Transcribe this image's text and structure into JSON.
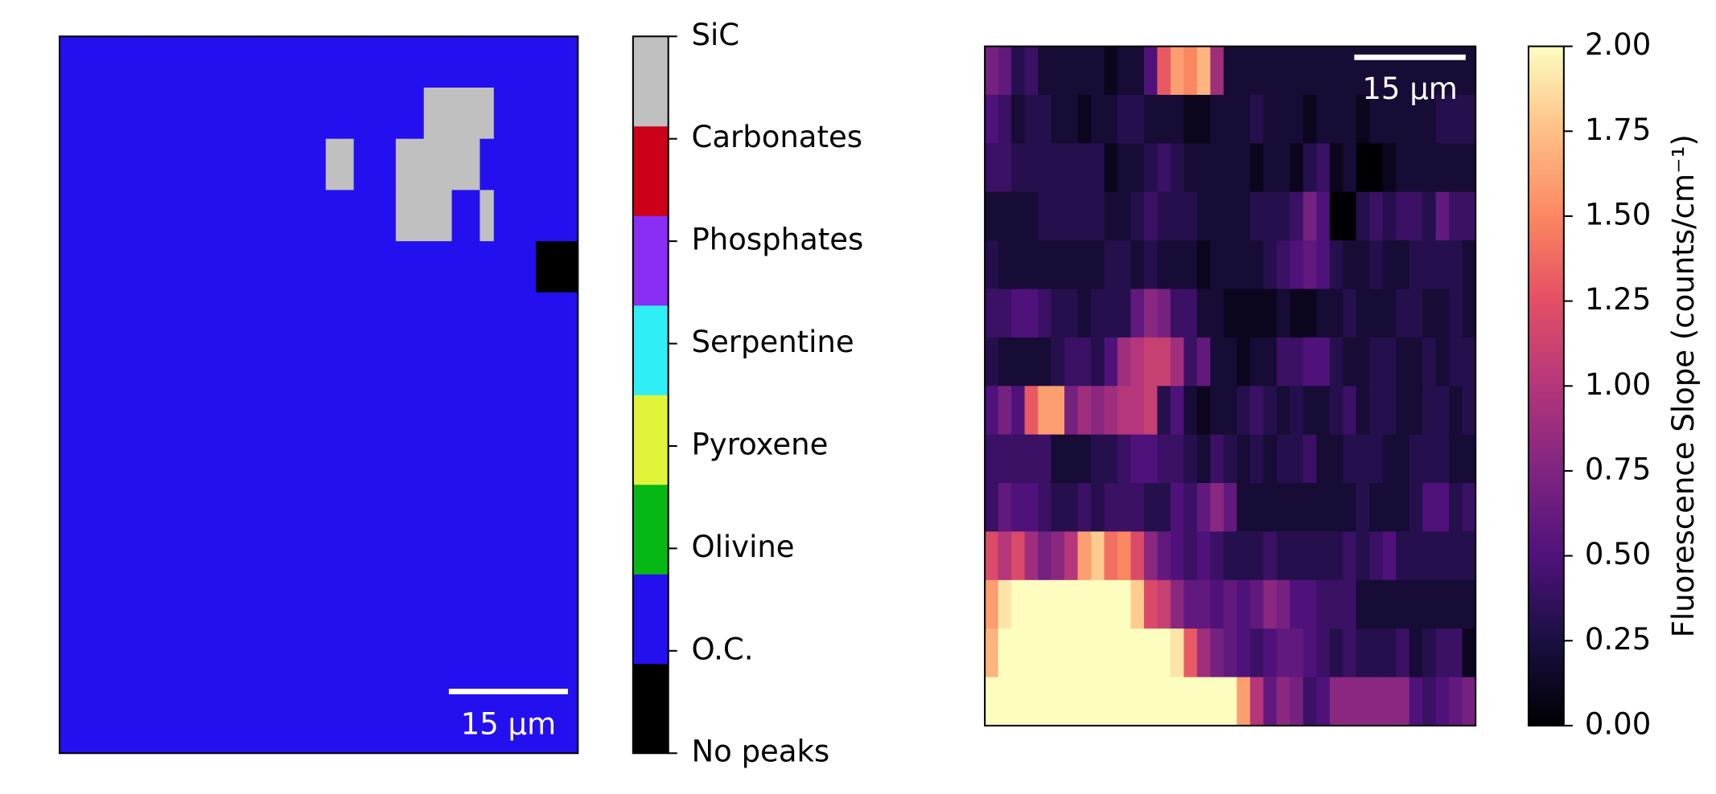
{
  "chart_data": [
    {
      "type": "categorical-map",
      "categories": [
        "No peaks",
        "O.C.",
        "Olivine",
        "Pyroxene",
        "Serpentine",
        "Phosphates",
        "Carbonates",
        "SiC"
      ],
      "colors": [
        "#000000",
        "#2410ee",
        "#05b815",
        "#e0f53a",
        "#30eef5",
        "#8a2df5",
        "#cc0018",
        "#c0c0c0"
      ],
      "annotation": "15 µm",
      "matrix": [
        [
          1,
          1,
          1,
          1,
          1,
          1,
          1,
          1,
          1,
          1,
          1,
          1,
          1,
          1,
          1,
          1,
          1,
          1,
          1,
          1,
          1,
          1,
          1,
          1,
          1,
          1,
          1,
          1,
          1,
          1,
          1,
          1,
          1,
          1,
          1,
          1,
          1
        ],
        [
          1,
          1,
          1,
          1,
          1,
          1,
          1,
          1,
          1,
          1,
          1,
          1,
          1,
          1,
          1,
          1,
          1,
          1,
          1,
          1,
          1,
          1,
          1,
          1,
          1,
          1,
          7,
          7,
          7,
          7,
          7,
          1,
          1,
          1,
          1,
          1,
          1
        ],
        [
          1,
          1,
          1,
          1,
          1,
          1,
          1,
          1,
          1,
          1,
          1,
          1,
          1,
          1,
          1,
          1,
          1,
          1,
          1,
          7,
          7,
          1,
          1,
          1,
          7,
          7,
          7,
          7,
          7,
          7,
          1,
          1,
          1,
          1,
          1,
          1,
          1
        ],
        [
          1,
          1,
          1,
          1,
          1,
          1,
          1,
          1,
          1,
          1,
          1,
          1,
          1,
          1,
          1,
          1,
          1,
          1,
          1,
          1,
          1,
          1,
          1,
          1,
          7,
          7,
          7,
          7,
          1,
          1,
          7,
          1,
          1,
          1,
          1,
          1,
          1
        ],
        [
          1,
          1,
          1,
          1,
          1,
          1,
          1,
          1,
          1,
          1,
          1,
          1,
          1,
          1,
          1,
          1,
          1,
          1,
          1,
          1,
          1,
          1,
          1,
          1,
          1,
          1,
          1,
          1,
          1,
          1,
          1,
          1,
          1,
          1,
          0,
          0,
          0
        ],
        [
          1,
          1,
          1,
          1,
          1,
          1,
          1,
          1,
          1,
          1,
          1,
          1,
          1,
          1,
          1,
          1,
          1,
          1,
          1,
          1,
          1,
          1,
          1,
          1,
          1,
          1,
          1,
          1,
          1,
          1,
          1,
          1,
          1,
          1,
          1,
          1,
          1
        ],
        [
          1,
          1,
          1,
          1,
          1,
          1,
          1,
          1,
          1,
          1,
          1,
          1,
          1,
          1,
          1,
          1,
          1,
          1,
          1,
          1,
          1,
          1,
          1,
          1,
          1,
          1,
          1,
          1,
          1,
          1,
          1,
          1,
          1,
          1,
          1,
          1,
          1
        ],
        [
          1,
          1,
          1,
          1,
          1,
          1,
          1,
          1,
          1,
          1,
          1,
          1,
          1,
          1,
          1,
          1,
          1,
          1,
          1,
          1,
          1,
          1,
          1,
          1,
          1,
          1,
          1,
          1,
          1,
          1,
          1,
          1,
          1,
          1,
          1,
          1,
          1
        ],
        [
          1,
          1,
          1,
          1,
          1,
          1,
          1,
          1,
          1,
          1,
          1,
          1,
          1,
          1,
          1,
          1,
          1,
          1,
          1,
          1,
          1,
          1,
          1,
          1,
          1,
          1,
          1,
          1,
          1,
          1,
          1,
          1,
          1,
          1,
          1,
          1,
          1
        ],
        [
          1,
          1,
          1,
          1,
          1,
          1,
          1,
          1,
          1,
          1,
          1,
          1,
          1,
          1,
          1,
          1,
          1,
          1,
          1,
          1,
          1,
          1,
          1,
          1,
          1,
          1,
          1,
          1,
          1,
          1,
          1,
          1,
          1,
          1,
          1,
          1,
          1
        ],
        [
          1,
          1,
          1,
          1,
          1,
          1,
          1,
          1,
          1,
          1,
          1,
          1,
          1,
          1,
          1,
          1,
          1,
          1,
          1,
          1,
          1,
          1,
          1,
          1,
          1,
          1,
          1,
          1,
          1,
          1,
          1,
          1,
          1,
          1,
          1,
          1,
          1
        ],
        [
          1,
          1,
          1,
          1,
          1,
          1,
          1,
          1,
          1,
          1,
          1,
          1,
          1,
          1,
          1,
          1,
          1,
          1,
          1,
          1,
          1,
          1,
          1,
          1,
          1,
          1,
          1,
          1,
          1,
          1,
          1,
          1,
          1,
          1,
          1,
          1,
          1
        ],
        [
          1,
          1,
          1,
          1,
          1,
          1,
          1,
          1,
          1,
          1,
          1,
          1,
          1,
          1,
          1,
          1,
          1,
          1,
          1,
          1,
          1,
          1,
          1,
          1,
          1,
          1,
          1,
          1,
          1,
          1,
          1,
          1,
          1,
          1,
          1,
          1,
          1
        ],
        [
          1,
          1,
          1,
          1,
          1,
          1,
          1,
          1,
          1,
          1,
          1,
          1,
          1,
          1,
          1,
          1,
          1,
          1,
          1,
          1,
          1,
          1,
          1,
          1,
          1,
          1,
          1,
          1,
          1,
          1,
          1,
          1,
          1,
          1,
          1,
          1,
          1
        ]
      ]
    },
    {
      "type": "heatmap",
      "colormap": "magma",
      "zlim": [
        0,
        2
      ],
      "zticks": [
        {
          "value": 0,
          "label": "0.00"
        },
        {
          "value": 0.25,
          "label": "0.25"
        },
        {
          "value": 0.5,
          "label": "0.50"
        },
        {
          "value": 0.75,
          "label": "0.75"
        },
        {
          "value": 1,
          "label": "1.00"
        },
        {
          "value": 1.25,
          "label": "1.25"
        },
        {
          "value": 1.5,
          "label": "1.50"
        },
        {
          "value": 1.75,
          "label": "1.75"
        },
        {
          "value": 2,
          "label": "2.00"
        }
      ],
      "colorbar_label": "Fluorescence Slope (counts/cm⁻¹)",
      "annotation": "15 µm",
      "matrix": [
        [
          0.7,
          0.6,
          0.3,
          0.4,
          0.2,
          0.2,
          0.2,
          0.2,
          0.2,
          0.1,
          0.2,
          0.2,
          0.5,
          1.3,
          1.6,
          1.5,
          1.7,
          0.9,
          0.2,
          0.2,
          0.2,
          0.2,
          0.2,
          0.2,
          0.2,
          0.2,
          0.2,
          0.2,
          0.2,
          0.2,
          0.2,
          0.2,
          0.2,
          0.2,
          0.2,
          0.2,
          0.2
        ],
        [
          0.5,
          0.4,
          0.2,
          0.3,
          0.3,
          0.2,
          0.2,
          0.1,
          0.2,
          0.2,
          0.3,
          0.3,
          0.2,
          0.2,
          0.2,
          0.1,
          0.1,
          0.2,
          0.2,
          0.2,
          0.3,
          0.2,
          0.2,
          0.2,
          0.1,
          0.2,
          0.2,
          0.2,
          0.1,
          0.2,
          0.2,
          0.2,
          0.2,
          0.2,
          0.3,
          0.3,
          0.3
        ],
        [
          0.4,
          0.4,
          0.3,
          0.3,
          0.3,
          0.3,
          0.3,
          0.3,
          0.3,
          0.1,
          0.2,
          0.2,
          0.3,
          0.4,
          0.3,
          0.2,
          0.2,
          0.2,
          0.2,
          0.2,
          0.1,
          0.2,
          0.2,
          0.1,
          0.3,
          0.4,
          0.1,
          0.2,
          0.0,
          0.0,
          0.1,
          0.2,
          0.2,
          0.2,
          0.2,
          0.2,
          0.2
        ],
        [
          0.2,
          0.2,
          0.2,
          0.2,
          0.3,
          0.3,
          0.3,
          0.3,
          0.3,
          0.2,
          0.2,
          0.3,
          0.4,
          0.3,
          0.3,
          0.3,
          0.2,
          0.2,
          0.2,
          0.2,
          0.3,
          0.3,
          0.3,
          0.4,
          0.7,
          0.5,
          0.0,
          0.0,
          0.3,
          0.4,
          0.3,
          0.4,
          0.4,
          0.3,
          0.6,
          0.4,
          0.4
        ],
        [
          0.3,
          0.2,
          0.2,
          0.2,
          0.2,
          0.2,
          0.2,
          0.2,
          0.2,
          0.3,
          0.3,
          0.2,
          0.3,
          0.2,
          0.2,
          0.2,
          0.1,
          0.2,
          0.2,
          0.2,
          0.2,
          0.3,
          0.4,
          0.5,
          0.6,
          0.5,
          0.3,
          0.2,
          0.2,
          0.3,
          0.2,
          0.2,
          0.3,
          0.3,
          0.3,
          0.3,
          0.2
        ],
        [
          0.4,
          0.4,
          0.5,
          0.5,
          0.4,
          0.3,
          0.3,
          0.2,
          0.3,
          0.3,
          0.3,
          0.6,
          0.8,
          0.7,
          0.4,
          0.4,
          0.2,
          0.2,
          0.1,
          0.1,
          0.1,
          0.1,
          0.2,
          0.1,
          0.1,
          0.2,
          0.2,
          0.3,
          0.2,
          0.2,
          0.2,
          0.3,
          0.3,
          0.2,
          0.2,
          0.3,
          0.2
        ],
        [
          0.3,
          0.2,
          0.2,
          0.2,
          0.2,
          0.3,
          0.4,
          0.4,
          0.3,
          0.5,
          0.9,
          1.0,
          1.1,
          1.1,
          0.9,
          0.4,
          0.6,
          0.2,
          0.2,
          0.1,
          0.2,
          0.2,
          0.4,
          0.4,
          0.5,
          0.5,
          0.3,
          0.2,
          0.2,
          0.3,
          0.3,
          0.2,
          0.2,
          0.3,
          0.2,
          0.3,
          0.3
        ],
        [
          0.5,
          0.7,
          0.5,
          1.3,
          1.6,
          1.6,
          0.7,
          0.9,
          0.8,
          0.9,
          1.0,
          1.0,
          1.1,
          0.3,
          0.5,
          0.2,
          0.1,
          0.2,
          0.2,
          0.3,
          0.4,
          0.3,
          0.2,
          0.3,
          0.2,
          0.2,
          0.3,
          0.4,
          0.2,
          0.3,
          0.3,
          0.2,
          0.2,
          0.3,
          0.3,
          0.2,
          0.3
        ],
        [
          0.4,
          0.4,
          0.4,
          0.4,
          0.4,
          0.2,
          0.2,
          0.2,
          0.3,
          0.3,
          0.4,
          0.5,
          0.5,
          0.4,
          0.4,
          0.3,
          0.2,
          0.4,
          0.3,
          0.2,
          0.3,
          0.2,
          0.3,
          0.3,
          0.4,
          0.2,
          0.2,
          0.3,
          0.3,
          0.3,
          0.2,
          0.2,
          0.3,
          0.3,
          0.3,
          0.2,
          0.2
        ],
        [
          0.4,
          0.6,
          0.5,
          0.5,
          0.4,
          0.3,
          0.3,
          0.4,
          0.3,
          0.4,
          0.4,
          0.4,
          0.3,
          0.3,
          0.5,
          0.4,
          0.6,
          0.8,
          0.6,
          0.2,
          0.2,
          0.2,
          0.2,
          0.2,
          0.2,
          0.2,
          0.2,
          0.2,
          0.3,
          0.2,
          0.2,
          0.2,
          0.3,
          0.5,
          0.5,
          0.3,
          0.4
        ],
        [
          1.2,
          1.0,
          1.2,
          0.9,
          0.7,
          0.8,
          1.0,
          1.6,
          1.8,
          1.4,
          1.5,
          1.2,
          0.8,
          0.6,
          0.5,
          0.4,
          0.5,
          0.4,
          0.3,
          0.3,
          0.3,
          0.4,
          0.3,
          0.3,
          0.3,
          0.3,
          0.3,
          0.4,
          0.3,
          0.4,
          0.5,
          0.3,
          0.3,
          0.3,
          0.3,
          0.3,
          0.3
        ],
        [
          1.6,
          1.9,
          2.0,
          2.0,
          2.0,
          2.0,
          2.0,
          2.0,
          2.0,
          2.0,
          2.0,
          1.8,
          1.2,
          1.1,
          0.8,
          0.6,
          0.6,
          0.5,
          0.6,
          0.5,
          0.6,
          0.8,
          0.7,
          0.5,
          0.5,
          0.4,
          0.4,
          0.4,
          0.2,
          0.2,
          0.2,
          0.2,
          0.2,
          0.2,
          0.2,
          0.2,
          0.2
        ],
        [
          1.7,
          2.0,
          2.0,
          2.0,
          2.0,
          2.0,
          2.0,
          2.0,
          2.0,
          2.0,
          2.0,
          2.0,
          2.0,
          2.0,
          1.9,
          1.3,
          0.9,
          0.7,
          0.6,
          0.5,
          0.4,
          0.5,
          0.6,
          0.6,
          0.5,
          0.4,
          0.3,
          0.4,
          0.3,
          0.3,
          0.3,
          0.4,
          0.2,
          0.3,
          0.4,
          0.4,
          0.1
        ],
        [
          2.0,
          2.0,
          2.0,
          2.0,
          2.0,
          2.0,
          2.0,
          2.0,
          2.0,
          2.0,
          2.0,
          2.0,
          2.0,
          2.0,
          2.0,
          2.0,
          2.0,
          2.0,
          2.0,
          1.6,
          1.0,
          0.6,
          0.8,
          0.7,
          0.4,
          0.5,
          0.8,
          0.8,
          0.8,
          0.8,
          0.8,
          0.8,
          0.5,
          0.4,
          0.5,
          0.6,
          0.7
        ]
      ]
    }
  ]
}
